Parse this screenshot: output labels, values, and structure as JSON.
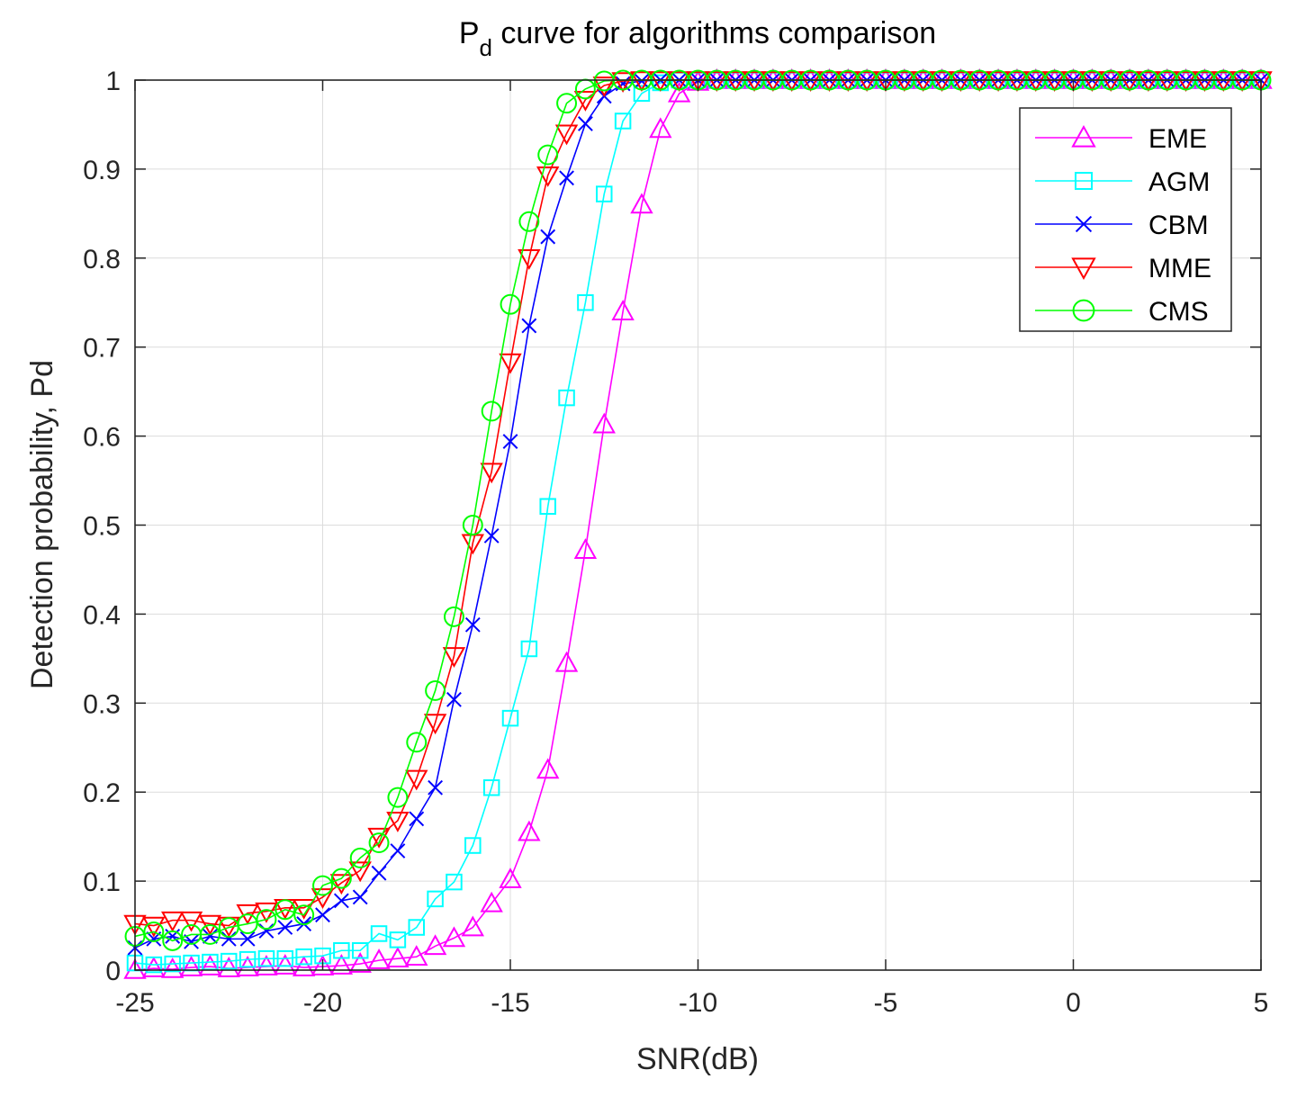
{
  "chart_data": {
    "type": "line",
    "title": "P",
    "title_subscript": "d",
    "title_rest": " curve for algorithms comparison",
    "xlabel": "SNR(dB)",
    "ylabel": "Detection probability, Pd",
    "xlim": [
      -25,
      5
    ],
    "ylim": [
      0,
      1
    ],
    "xticks": [
      -25,
      -20,
      -15,
      -10,
      -5,
      0,
      5
    ],
    "yticks": [
      0,
      0.1,
      0.2,
      0.3,
      0.4,
      0.5,
      0.6,
      0.7,
      0.8,
      0.9,
      1
    ],
    "grid": true,
    "legend_position": "top-right",
    "x": [
      -25,
      -24.5,
      -24,
      -23.5,
      -23,
      -22.5,
      -22,
      -21.5,
      -21,
      -20.5,
      -20,
      -19.5,
      -19,
      -18.5,
      -18,
      -17.5,
      -17,
      -16.5,
      -16,
      -15.5,
      -15,
      -14.5,
      -14,
      -13.5,
      -13,
      -12.5,
      -12,
      -11.5,
      -11,
      -10.5,
      -10,
      -9.5,
      -9,
      -8.5,
      -8,
      -7.5,
      -7,
      -6.5,
      -6,
      -5.5,
      -5,
      -4.5,
      -4,
      -3.5,
      -3,
      -2.5,
      -2,
      -1.5,
      -1,
      -0.5,
      0,
      0.5,
      1,
      1.5,
      2,
      2.5,
      3,
      3.5,
      4,
      4.5,
      5
    ],
    "series": [
      {
        "name": "EME",
        "color": "#ff00ff",
        "marker": "triangle-up",
        "values": [
          0.0,
          0.002,
          0.001,
          0.003,
          0.004,
          0.002,
          0.003,
          0.004,
          0.005,
          0.003,
          0.004,
          0.005,
          0.007,
          0.011,
          0.013,
          0.015,
          0.027,
          0.036,
          0.048,
          0.075,
          0.102,
          0.155,
          0.225,
          0.345,
          0.472,
          0.613,
          0.74,
          0.86,
          0.945,
          0.985,
          0.998,
          1,
          1,
          1,
          1,
          1,
          1,
          1,
          1,
          1,
          1,
          1,
          1,
          1,
          1,
          1,
          1,
          1,
          1,
          1,
          1,
          1,
          1,
          1,
          1,
          1,
          1,
          1,
          1,
          1,
          1
        ]
      },
      {
        "name": "AGM",
        "color": "#00ffff",
        "marker": "square",
        "values": [
          0.008,
          0.006,
          0.007,
          0.008,
          0.009,
          0.01,
          0.012,
          0.013,
          0.013,
          0.015,
          0.016,
          0.022,
          0.022,
          0.041,
          0.034,
          0.048,
          0.08,
          0.099,
          0.14,
          0.205,
          0.283,
          0.361,
          0.521,
          0.643,
          0.75,
          0.872,
          0.954,
          0.985,
          0.997,
          1,
          1,
          1,
          1,
          1,
          1,
          1,
          1,
          1,
          1,
          1,
          1,
          1,
          1,
          1,
          1,
          1,
          1,
          1,
          1,
          1,
          1,
          1,
          1,
          1,
          1,
          1,
          1,
          1,
          1,
          1,
          1
        ]
      },
      {
        "name": "CBM",
        "color": "#0000ff",
        "marker": "x",
        "values": [
          0.025,
          0.035,
          0.038,
          0.032,
          0.038,
          0.035,
          0.035,
          0.044,
          0.048,
          0.052,
          0.062,
          0.078,
          0.082,
          0.109,
          0.134,
          0.17,
          0.205,
          0.304,
          0.388,
          0.488,
          0.594,
          0.724,
          0.824,
          0.89,
          0.951,
          0.982,
          0.996,
          0.999,
          1,
          1,
          1,
          1,
          1,
          1,
          1,
          1,
          1,
          1,
          1,
          1,
          1,
          1,
          1,
          1,
          1,
          1,
          1,
          1,
          1,
          1,
          1,
          1,
          1,
          1,
          1,
          1,
          1,
          1,
          1,
          1,
          1
        ]
      },
      {
        "name": "MME",
        "color": "#ff0000",
        "marker": "triangle-down",
        "values": [
          0.052,
          0.05,
          0.056,
          0.056,
          0.052,
          0.05,
          0.064,
          0.066,
          0.07,
          0.07,
          0.082,
          0.098,
          0.112,
          0.15,
          0.168,
          0.215,
          0.278,
          0.353,
          0.48,
          0.56,
          0.683,
          0.8,
          0.893,
          0.94,
          0.978,
          0.994,
          0.999,
          1,
          1,
          1,
          1,
          1,
          1,
          1,
          1,
          1,
          1,
          1,
          1,
          1,
          1,
          1,
          1,
          1,
          1,
          1,
          1,
          1,
          1,
          1,
          1,
          1,
          1,
          1,
          1,
          1,
          1,
          1,
          1,
          1,
          1
        ]
      },
      {
        "name": "CMS",
        "color": "#00ff00",
        "marker": "circle",
        "values": [
          0.038,
          0.043,
          0.033,
          0.04,
          0.04,
          0.048,
          0.052,
          0.057,
          0.068,
          0.062,
          0.095,
          0.103,
          0.126,
          0.143,
          0.194,
          0.256,
          0.314,
          0.397,
          0.5,
          0.628,
          0.748,
          0.841,
          0.916,
          0.974,
          0.99,
          0.999,
          1,
          1,
          1,
          1,
          1,
          1,
          1,
          1,
          1,
          1,
          1,
          1,
          1,
          1,
          1,
          1,
          1,
          1,
          1,
          1,
          1,
          1,
          1,
          1,
          1,
          1,
          1,
          1,
          1,
          1,
          1,
          1,
          1,
          1,
          1
        ]
      }
    ]
  }
}
